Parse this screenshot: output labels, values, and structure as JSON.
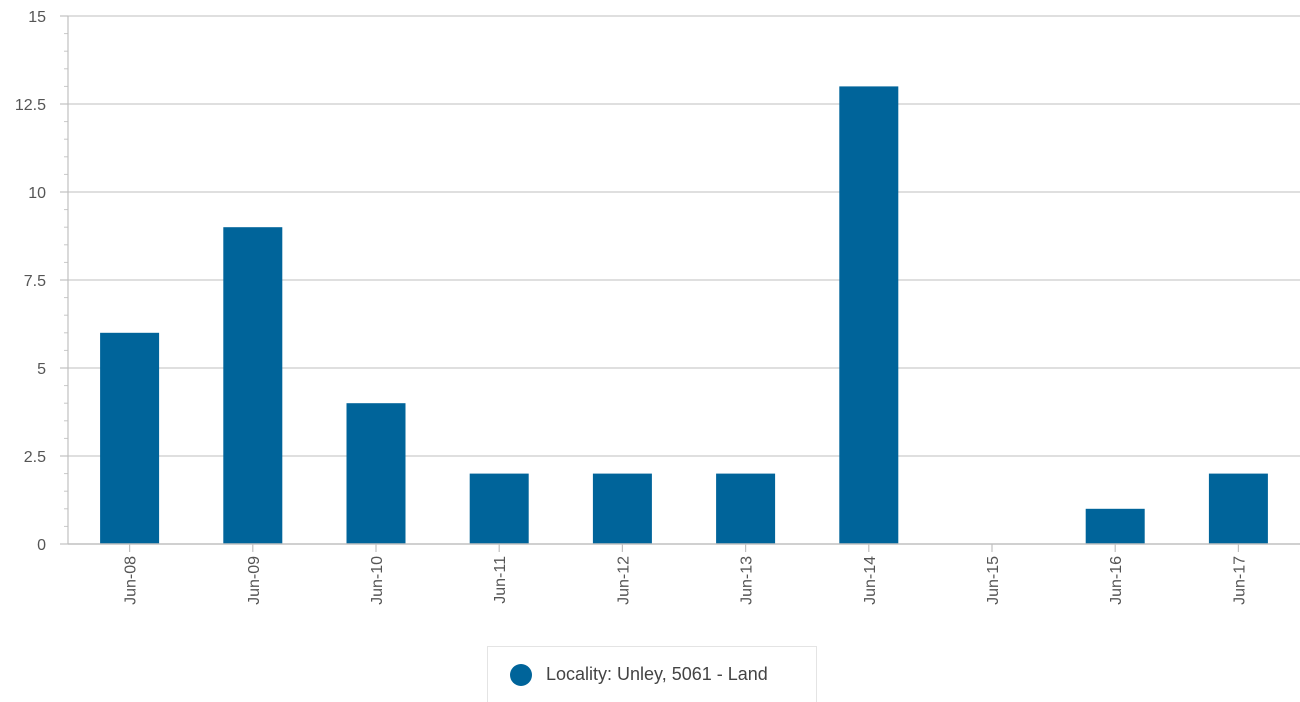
{
  "chart_data": {
    "type": "bar",
    "categories": [
      "Jun-08",
      "Jun-09",
      "Jun-10",
      "Jun-11",
      "Jun-12",
      "Jun-13",
      "Jun-14",
      "Jun-15",
      "Jun-16",
      "Jun-17"
    ],
    "series": [
      {
        "name": "Locality: Unley, 5061 - Land",
        "values": [
          6,
          9,
          4,
          2,
          2,
          2,
          13,
          0,
          1,
          2
        ],
        "color": "#00649a"
      }
    ],
    "ylim": [
      0,
      15
    ],
    "yticks": [
      0,
      2.5,
      5,
      7.5,
      10,
      12.5,
      15
    ],
    "ytick_labels": [
      "0",
      "2.5",
      "5",
      "7.5",
      "10",
      "12.5",
      "15"
    ],
    "grid": true,
    "legend_position": "bottom-center"
  },
  "legend": {
    "label": "Locality: Unley, 5061 - Land",
    "color": "#00649a"
  }
}
